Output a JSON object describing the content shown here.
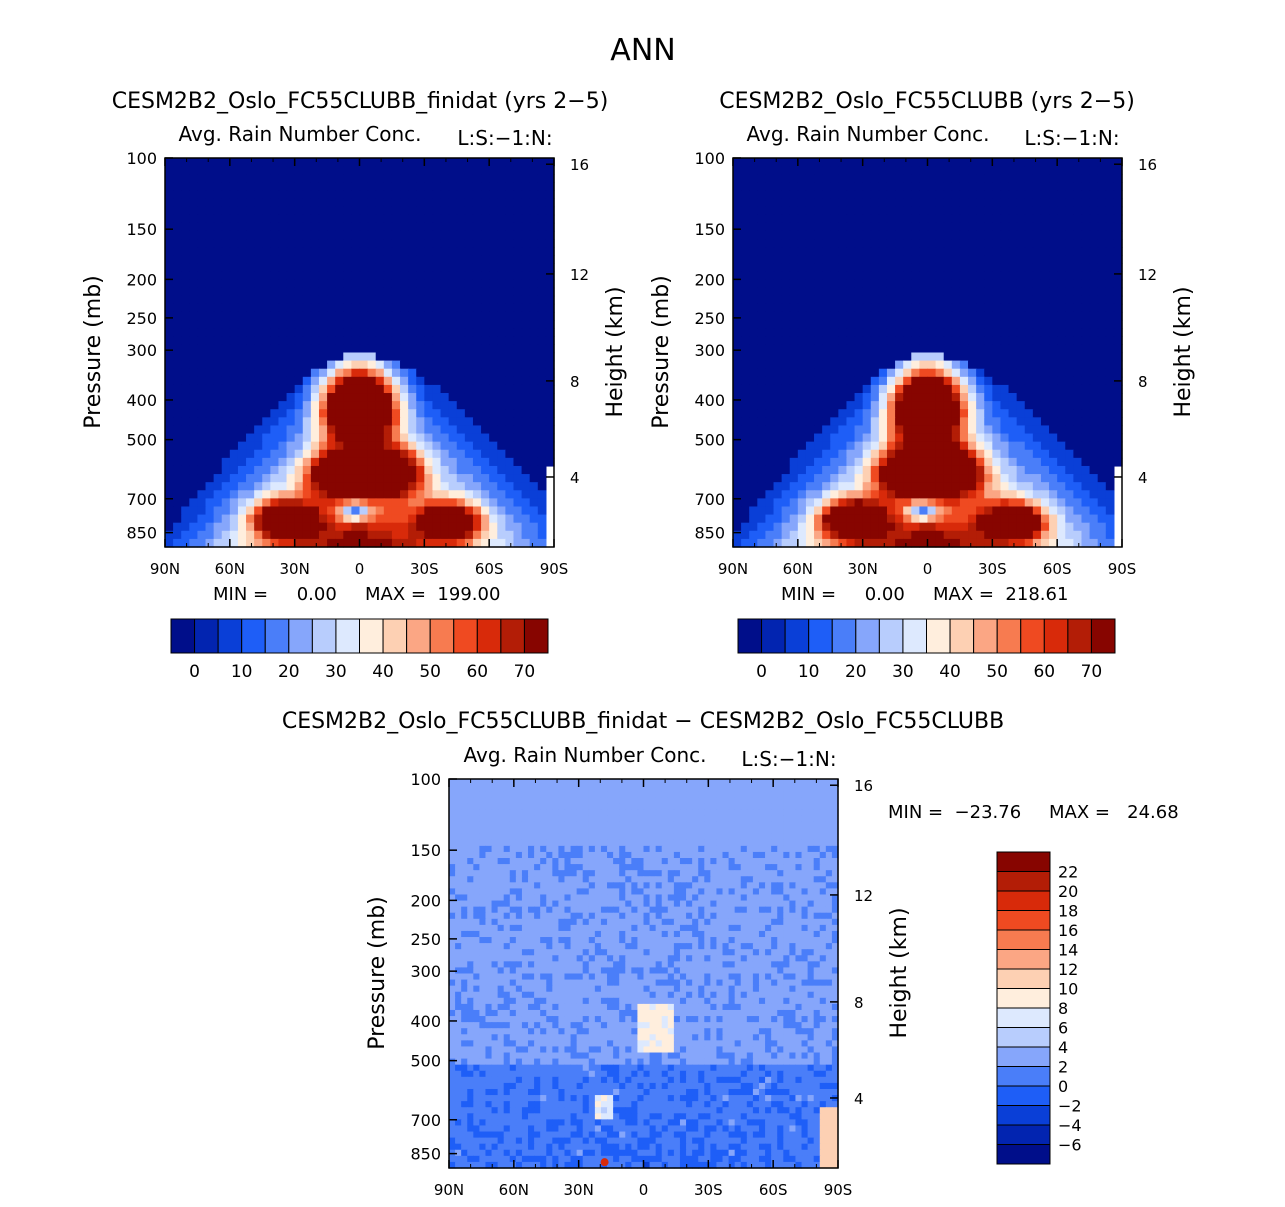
{
  "main_title": "ANN",
  "palette_abs": [
    "#000e8a",
    "#0224b0",
    "#0a3fd7",
    "#1e5ef7",
    "#4a7ef9",
    "#86a6fb",
    "#b8cdfd",
    "#dde9fe",
    "#ffeedd",
    "#fdd0b3",
    "#fba684",
    "#f77b50",
    "#ef4a21",
    "#d82a0a",
    "#b31d06",
    "#870500"
  ],
  "palette_diff": [
    "#000e8a",
    "#0224b0",
    "#0a3fd7",
    "#1e5ef7",
    "#4a7ef9",
    "#86a6fb",
    "#b8cdfd",
    "#dde9fe",
    "#ffeedd",
    "#fdd0b3",
    "#fba684",
    "#f77b50",
    "#ef4a21",
    "#d82a0a",
    "#b31d06",
    "#870500"
  ],
  "colorbar_abs_labels": [
    "0",
    "10",
    "20",
    "30",
    "40",
    "50",
    "60",
    "70"
  ],
  "colorbar_diff_labels": [
    "22",
    "20",
    "18",
    "16",
    "14",
    "12",
    "10",
    "8",
    "6",
    "4",
    "2",
    "0",
    "−2",
    "−4",
    "−6"
  ],
  "chart_data": [
    {
      "type": "heatmap",
      "title": "CESM2B2_Oslo_FC55CLUBB_finidat (yrs 2−5)",
      "subtitle": "Avg. Rain Number Conc.",
      "units": "L:S:−1:N:",
      "ylabel": "Pressure (mb)",
      "y2label": "Height (km)",
      "xticks": [
        "90N",
        "60N",
        "30N",
        "0",
        "30S",
        "60S",
        "90S"
      ],
      "yticks": [
        "100",
        "150",
        "200",
        "250",
        "300",
        "400",
        "500",
        "700",
        "850"
      ],
      "y2ticks": [
        "16",
        "12",
        "8",
        "4"
      ],
      "min_text": "MIN =     0.00",
      "max_text": "MAX =  199.00",
      "ylim": [
        100,
        1000
      ],
      "levels": [
        -5,
        0,
        5,
        10,
        15,
        20,
        25,
        30,
        35,
        40,
        45,
        50,
        55,
        60,
        65,
        70
      ],
      "max_value": 199.0,
      "cores": [
        {
          "lat": -15,
          "p": 640,
          "value": 75
        },
        {
          "lat": 10,
          "p": 650,
          "value": 70
        },
        {
          "lat": -5,
          "p": 440,
          "value": 70
        },
        {
          "lat": 5,
          "p": 440,
          "value": 70
        },
        {
          "lat": -42,
          "p": 860,
          "value": 72
        },
        {
          "lat": 35,
          "p": 850,
          "value": 75
        }
      ]
    },
    {
      "type": "heatmap",
      "title": "CESM2B2_Oslo_FC55CLUBB (yrs 2−5)",
      "subtitle": "Avg. Rain Number Conc.",
      "units": "L:S:−1:N:",
      "ylabel": "Pressure (mb)",
      "y2label": "Height (km)",
      "xticks": [
        "90N",
        "60N",
        "30N",
        "0",
        "30S",
        "60S",
        "90S"
      ],
      "yticks": [
        "100",
        "150",
        "200",
        "250",
        "300",
        "400",
        "500",
        "700",
        "850"
      ],
      "y2ticks": [
        "16",
        "12",
        "8",
        "4"
      ],
      "min_text": "MIN =     0.00",
      "max_text": "MAX =  218.61",
      "ylim": [
        100,
        1000
      ],
      "levels": [
        -5,
        0,
        5,
        10,
        15,
        20,
        25,
        30,
        35,
        40,
        45,
        50,
        55,
        60,
        65,
        70
      ],
      "max_value": 218.61,
      "cores": [
        {
          "lat": -12,
          "p": 640,
          "value": 78
        },
        {
          "lat": 10,
          "p": 640,
          "value": 72
        },
        {
          "lat": -5,
          "p": 440,
          "value": 68
        },
        {
          "lat": 5,
          "p": 440,
          "value": 68
        },
        {
          "lat": -40,
          "p": 860,
          "value": 72
        },
        {
          "lat": 35,
          "p": 850,
          "value": 80
        }
      ]
    },
    {
      "type": "heatmap",
      "title": "CESM2B2_Oslo_FC55CLUBB_finidat − CESM2B2_Oslo_FC55CLUBB",
      "subtitle": "Avg. Rain Number Conc.",
      "units": "L:S:−1:N:",
      "ylabel": "Pressure (mb)",
      "y2label": "Height (km)",
      "xticks": [
        "90N",
        "60N",
        "30N",
        "0",
        "30S",
        "60S",
        "90S"
      ],
      "yticks": [
        "100",
        "150",
        "200",
        "250",
        "300",
        "400",
        "500",
        "700",
        "850"
      ],
      "y2ticks": [
        "16",
        "12",
        "8",
        "4"
      ],
      "min_text": "MIN =  −23.76",
      "max_text": "MAX =   24.68",
      "ylim": [
        100,
        1000
      ],
      "levels": [
        -8,
        -6,
        -4,
        -2,
        0,
        2,
        4,
        6,
        8,
        10,
        12,
        14,
        16,
        18,
        20,
        22
      ],
      "min_value": -23.76,
      "max_value": 24.68
    }
  ]
}
